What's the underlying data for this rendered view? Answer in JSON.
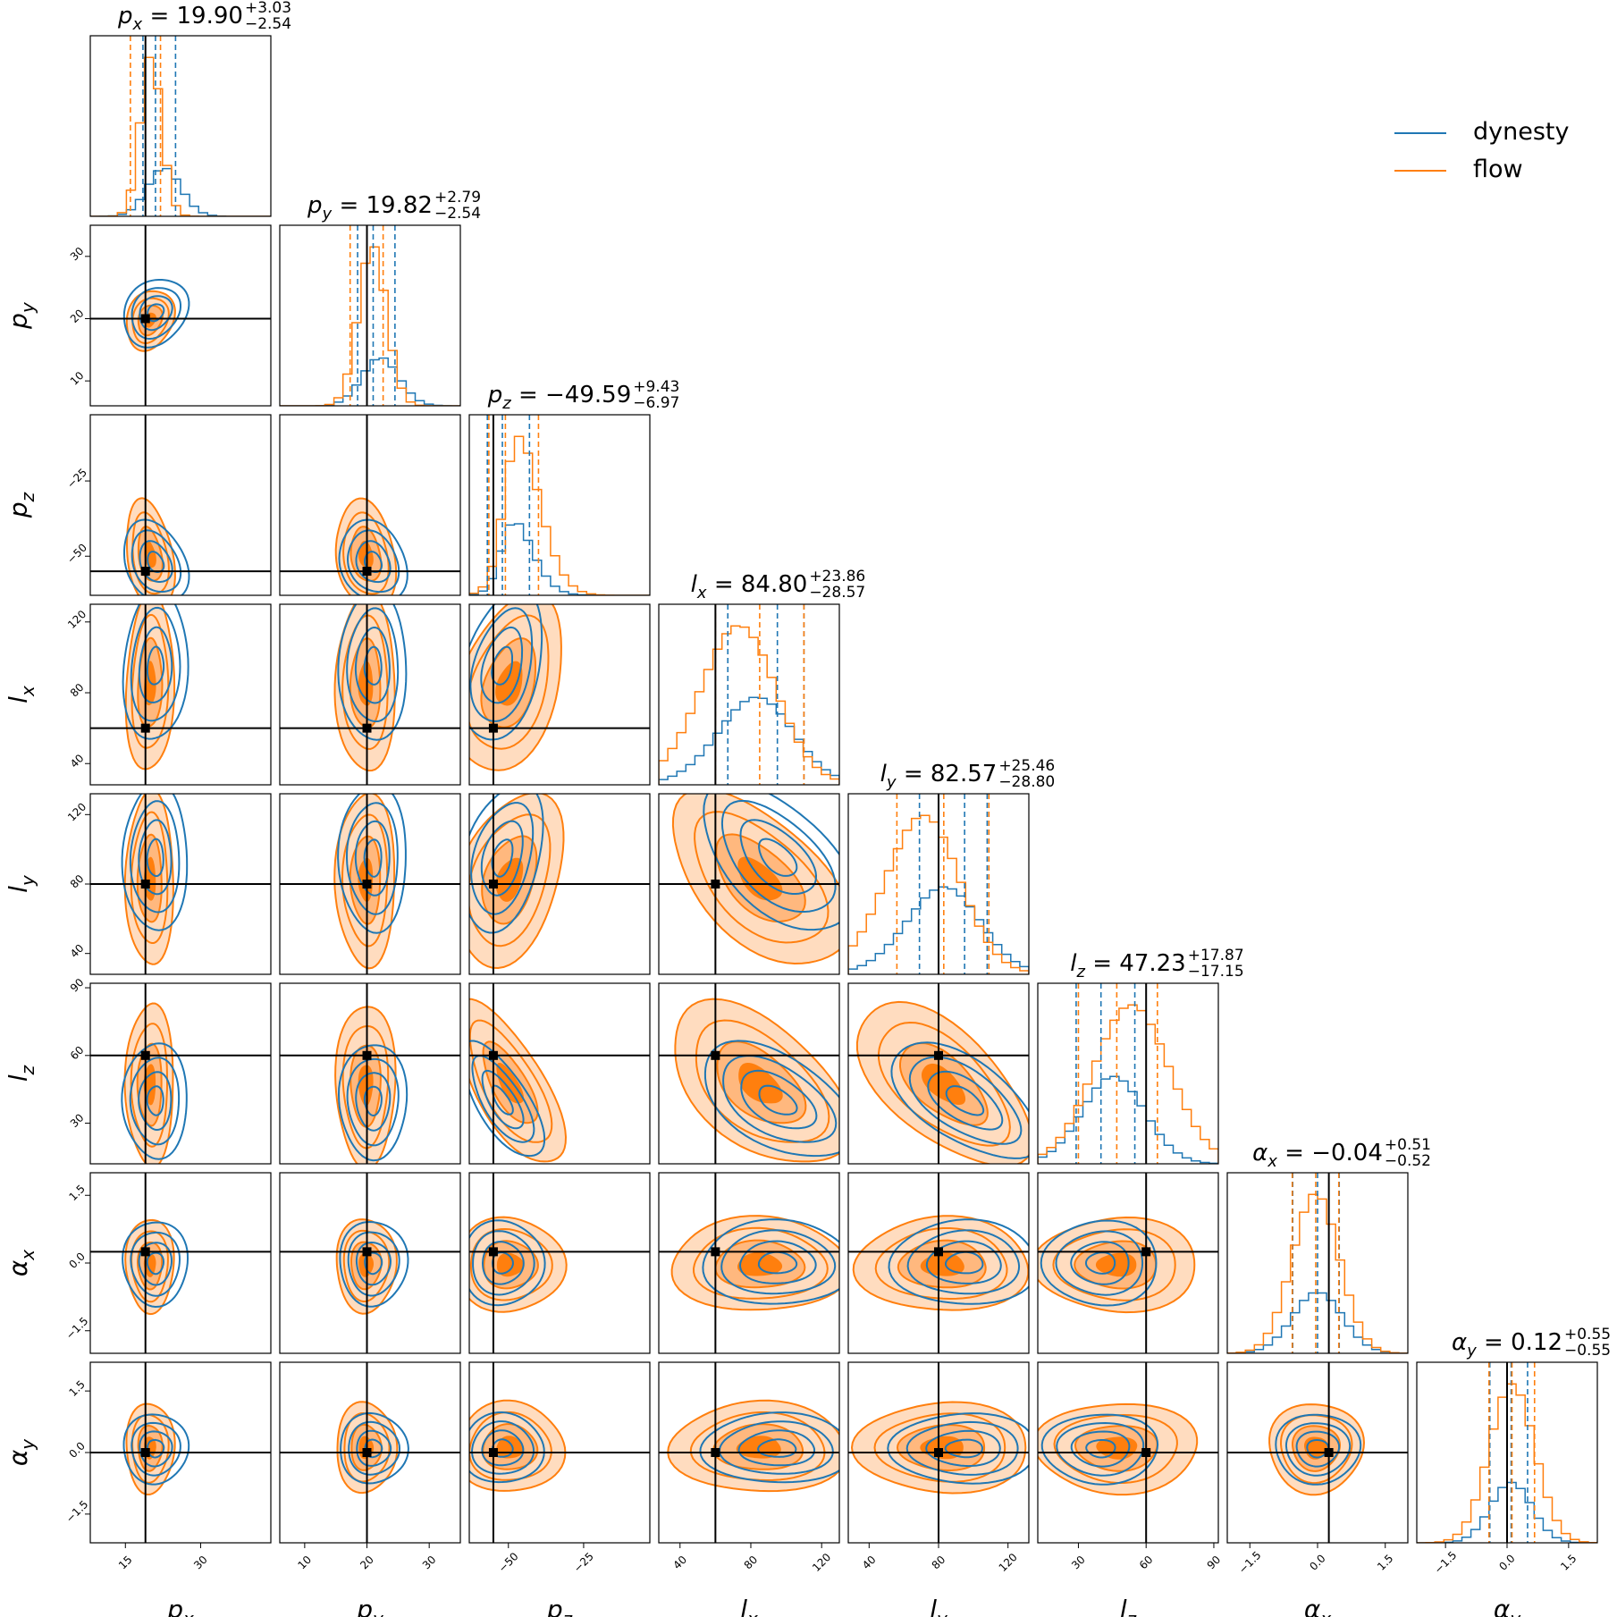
{
  "figure": "corner-plot",
  "colors": {
    "dynesty": "#1f77b4",
    "flow": "#ff7f0e",
    "truth": "#000000",
    "flow_fill_levels": [
      "#ffdcbf",
      "#ffb87e",
      "#ff7f0e"
    ]
  },
  "legend": [
    {
      "label": "dynesty",
      "color": "#1f77b4"
    },
    {
      "label": "flow",
      "color": "#ff7f0e"
    }
  ],
  "chart_data": {
    "type": "corner",
    "parameters": [
      {
        "key": "px",
        "label": "p_x",
        "axis_label": "p",
        "sub": "x",
        "range": [
          8,
          44
        ],
        "ticks": [
          15,
          30
        ],
        "tick_labels": [
          "15",
          "30"
        ],
        "truth": 19,
        "median": 19.9,
        "err_plus": 3.03,
        "err_minus": 2.54,
        "title": {
          "base": "p",
          "sub": "x",
          "value": "= 19.90",
          "plus": "+3.03",
          "minus": "−2.54"
        },
        "dynesty_quantiles": [
          18.5,
          21.0,
          25.0
        ],
        "flow_quantiles": [
          16.0,
          19.0,
          22.0
        ],
        "dynesty_hist_peak": 0.3,
        "flow_hist_peak": 1.0,
        "dynesty_sd": 3.8,
        "flow_sd": 2.4,
        "skew": 0.7
      },
      {
        "key": "py",
        "label": "p_y",
        "axis_label": "p",
        "sub": "y",
        "range": [
          6,
          35
        ],
        "ticks": [
          10,
          20,
          30
        ],
        "tick_labels": [
          "10",
          "20",
          "30"
        ],
        "truth": 20,
        "median": 19.82,
        "err_plus": 2.79,
        "err_minus": 2.54,
        "title": {
          "base": "p",
          "sub": "y",
          "value": "= 19.82",
          "plus": "+2.79",
          "minus": "−2.54"
        },
        "dynesty_quantiles": [
          18.5,
          21.0,
          24.5
        ],
        "flow_quantiles": [
          17.3,
          20.0,
          22.6
        ],
        "dynesty_hist_peak": 0.3,
        "flow_hist_peak": 1.0,
        "dynesty_sd": 3.2,
        "flow_sd": 2.4,
        "skew": 0.5
      },
      {
        "key": "pz",
        "label": "p_z",
        "axis_label": "p",
        "sub": "z",
        "range": [
          -63,
          -3
        ],
        "ticks": [
          -50,
          -25
        ],
        "tick_labels": [
          "−50",
          "−25"
        ],
        "truth": -55,
        "median": -49.59,
        "err_plus": 9.43,
        "err_minus": 6.97,
        "title": {
          "base": "p",
          "sub": "z",
          "value": "= −49.59",
          "plus": "+9.43",
          "minus": "−6.97"
        },
        "dynesty_quantiles": [
          -57.0,
          -52.0,
          -43.0
        ],
        "flow_quantiles": [
          -56.5,
          -51.0,
          -40.0
        ],
        "dynesty_hist_peak": 0.45,
        "flow_hist_peak": 1.0,
        "dynesty_sd": 8.0,
        "flow_sd": 9.0,
        "skew": 2.0
      },
      {
        "key": "lx",
        "label": "l_x",
        "axis_label": "l",
        "sub": "x",
        "range": [
          28,
          130
        ],
        "ticks": [
          40,
          80,
          120
        ],
        "tick_labels": [
          "40",
          "80",
          "120"
        ],
        "truth": 60,
        "median": 84.8,
        "err_plus": 23.86,
        "err_minus": 28.57,
        "title": {
          "base": "l",
          "sub": "x",
          "value": "= 84.80",
          "plus": "+23.86",
          "minus": "−28.57"
        },
        "dynesty_quantiles": [
          67.0,
          95.0,
          110.0
        ],
        "flow_quantiles": [
          60.0,
          85.0,
          110.0
        ],
        "dynesty_hist_peak": 0.55,
        "flow_hist_peak": 1.0,
        "dynesty_sd": 25.0,
        "flow_sd": 25.0,
        "skew": -0.8
      },
      {
        "key": "ly",
        "label": "l_y",
        "axis_label": "l",
        "sub": "y",
        "range": [
          28,
          132
        ],
        "ticks": [
          40,
          80,
          120
        ],
        "tick_labels": [
          "40",
          "80",
          "120"
        ],
        "truth": 80,
        "median": 82.57,
        "err_plus": 25.46,
        "err_minus": 28.8,
        "title": {
          "base": "l",
          "sub": "y",
          "value": "= 82.57",
          "plus": "+25.46",
          "minus": "−28.80"
        },
        "dynesty_quantiles": [
          69.0,
          95.0,
          108.0
        ],
        "flow_quantiles": [
          56.0,
          83.0,
          109.0
        ],
        "dynesty_hist_peak": 0.55,
        "flow_hist_peak": 1.0,
        "dynesty_sd": 25.0,
        "flow_sd": 25.0,
        "skew": -0.8
      },
      {
        "key": "lz",
        "label": "l_z",
        "axis_label": "l",
        "sub": "z",
        "range": [
          12,
          92
        ],
        "ticks": [
          30,
          60,
          90
        ],
        "tick_labels": [
          "30",
          "60",
          "90"
        ],
        "truth": 60,
        "median": 47.23,
        "err_plus": 17.87,
        "err_minus": 17.15,
        "title": {
          "base": "l",
          "sub": "z",
          "value": "= 47.23",
          "plus": "+17.87",
          "minus": "−17.15"
        },
        "dynesty_quantiles": [
          29.0,
          40.0,
          55.0
        ],
        "flow_quantiles": [
          30.0,
          47.0,
          65.0
        ],
        "dynesty_hist_peak": 0.55,
        "flow_hist_peak": 1.0,
        "dynesty_sd": 15.0,
        "flow_sd": 18.0,
        "skew": 0.5
      },
      {
        "key": "ax",
        "label": "α_x",
        "axis_label": "α",
        "sub": "x",
        "range": [
          -2.0,
          2.0
        ],
        "ticks": [
          -1.5,
          0.0,
          1.5
        ],
        "tick_labels": [
          "−1.5",
          "0.0",
          "1.5"
        ],
        "truth": 0.25,
        "median": -0.04,
        "err_plus": 0.51,
        "err_minus": 0.52,
        "title": {
          "base": "α",
          "sub": "x",
          "value": "= −0.04",
          "plus": "+0.51",
          "minus": "−0.52"
        },
        "dynesty_quantiles": [
          -0.55,
          0.0,
          0.48
        ],
        "flow_quantiles": [
          -0.56,
          -0.04,
          0.47
        ],
        "dynesty_hist_peak": 0.38,
        "flow_hist_peak": 1.0,
        "dynesty_sd": 0.55,
        "flow_sd": 0.52,
        "skew": 0
      },
      {
        "key": "ay",
        "label": "α_y",
        "axis_label": "α",
        "sub": "y",
        "range": [
          -2.2,
          2.2
        ],
        "ticks": [
          -1.5,
          0.0,
          1.5
        ],
        "tick_labels": [
          "−1.5",
          "0.0",
          "1.5"
        ],
        "truth": 0.0,
        "median": 0.12,
        "err_plus": 0.55,
        "err_minus": 0.55,
        "title": {
          "base": "α",
          "sub": "y",
          "value": "= 0.12",
          "plus": "+0.55",
          "minus": "−0.55"
        },
        "dynesty_quantiles": [
          -0.42,
          0.1,
          0.5
        ],
        "flow_quantiles": [
          -0.44,
          0.12,
          0.67
        ],
        "dynesty_hist_peak": 0.38,
        "flow_hist_peak": 1.0,
        "dynesty_sd": 0.5,
        "flow_sd": 0.55,
        "skew": 0
      }
    ],
    "correlations": {
      "px|py": 0.2,
      "px|pz": -0.3,
      "py|pz": -0.2,
      "px|lx": 0.1,
      "py|lx": 0.0,
      "pz|lx": 0.35,
      "px|ly": 0.0,
      "py|ly": 0.0,
      "pz|ly": 0.35,
      "lx|ly": -0.55,
      "px|lz": 0.0,
      "py|lz": 0.0,
      "pz|lz": -0.7,
      "lx|lz": -0.5,
      "ly|lz": -0.6,
      "px|ax": 0.0,
      "py|ax": 0.0,
      "pz|ax": 0.0,
      "lx|ax": 0.0,
      "ly|ax": 0.0,
      "lz|ax": 0.0,
      "px|ay": 0.0,
      "py|ay": 0.0,
      "pz|ay": 0.0,
      "lx|ay": 0.0,
      "ly|ay": 0.0,
      "lz|ay": 0.0,
      "ax|ay": 0.0
    },
    "contour_levels_sigma": [
      0.5,
      1.0,
      1.5,
      2.0
    ],
    "flow_fill_levels_sigma": [
      0.5,
      1.0,
      2.0
    ],
    "grid": false,
    "legend_position": "top-right"
  }
}
